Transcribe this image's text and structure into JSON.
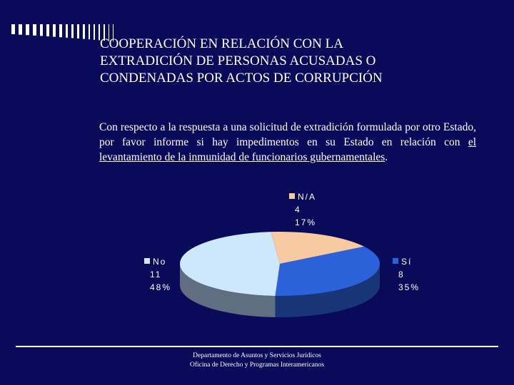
{
  "slide": {
    "title_lines": [
      "COOPERACIÓN EN RELACIÓN CON LA",
      "EXTRADICIÓN DE PERSONAS ACUSADAS O",
      "CONDENADAS POR ACTOS DE CORRUPCIÓN"
    ],
    "body": {
      "intro": "Con respecto a la respuesta a una solicitud de extradición formulada por otro Estado, por favor informe si hay impedimentos en su Estado en relación con",
      "underlined": "el levantamiento de la inmunidad de funcionarios gubernamentales",
      "end": "."
    },
    "footer": {
      "line1": "Departamento de Asuntos y Servicios Jurídicos",
      "line2": "Oficina de Derecho y Programas Interamericanos"
    }
  },
  "colors": {
    "background": "#0a0a5a",
    "no": "#cde8fb",
    "si": "#2c62d9",
    "na": "#f7caa2",
    "side": "#5f6e80"
  },
  "chart_data": {
    "type": "pie",
    "title": "",
    "slices": [
      {
        "name": "N/A",
        "value": 4,
        "percent_label": "17%",
        "color": "#f7caa2",
        "legend_pos": "top"
      },
      {
        "name": "Sí",
        "value": 8,
        "percent_label": "35%",
        "color": "#2c62d9",
        "legend_pos": "right"
      },
      {
        "name": "No",
        "value": 11,
        "percent_label": "48%",
        "color": "#cde8fb",
        "legend_pos": "left"
      }
    ],
    "legend": "beside-slices",
    "style": "3d"
  }
}
